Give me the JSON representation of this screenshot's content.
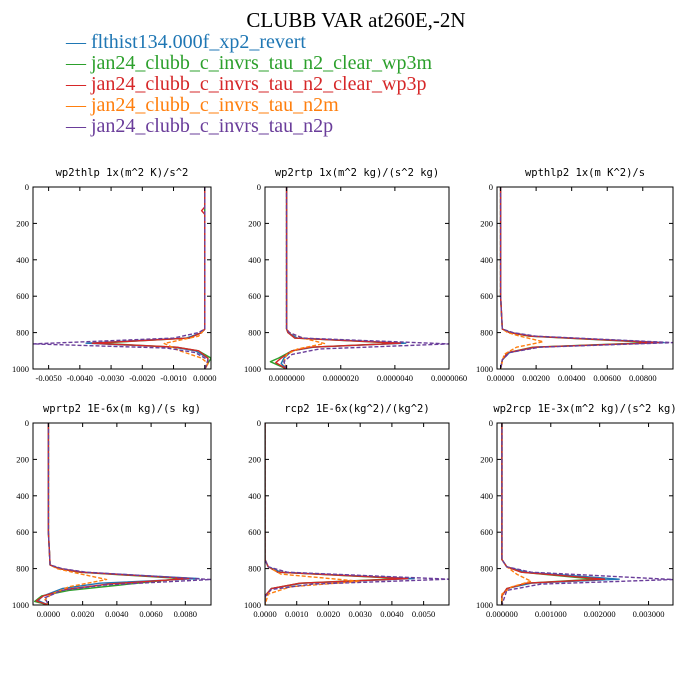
{
  "figure": {
    "title": "CLUBB VAR at260E,-2N"
  },
  "legend": [
    {
      "label": "flthist134.000f_xp2_revert",
      "color": "#1f77b4",
      "dash": "solid"
    },
    {
      "label": "jan24_clubb_c_invrs_tau_n2_clear_wp3m",
      "color": "#2ca02c",
      "dash": "solid"
    },
    {
      "label": "jan24_clubb_c_invrs_tau_n2_clear_wp3p",
      "color": "#d62728",
      "dash": "solid"
    },
    {
      "label": "jan24_clubb_c_invrs_tau_n2m",
      "color": "#ff7f0e",
      "dash": "dashed"
    },
    {
      "label": "jan24_clubb_c_invrs_tau_n2p",
      "color": "#6a3d9a",
      "dash": "dashed"
    }
  ],
  "chart_data": [
    {
      "type": "line",
      "title": "wp2thlp  1x(m^2 K)/s^2",
      "xlim": [
        -0.0055,
        0.0002
      ],
      "xticks": [
        -0.005,
        -0.004,
        -0.003,
        -0.002,
        -0.001,
        0
      ],
      "xtick_labels": [
        "-0.0050",
        "-0.0040",
        "-0.0030",
        "-0.0020",
        "-0.0010",
        "0.0000"
      ],
      "ylim": [
        1000,
        0
      ],
      "yticks": [
        0,
        200,
        400,
        600,
        800,
        1000
      ],
      "series": [
        {
          "color": "#1f77b4",
          "dash": "solid",
          "x": [
            0,
            0,
            0,
            0,
            0,
            -0.0001,
            -0.0006,
            -0.0038,
            -0.001,
            -0.0003,
            0.0001,
            0.0001,
            0
          ],
          "y": [
            0,
            300,
            600,
            700,
            780,
            800,
            830,
            858,
            880,
            900,
            940,
            970,
            1000
          ]
        },
        {
          "color": "#2ca02c",
          "dash": "solid",
          "x": [
            0,
            0,
            0,
            0,
            0,
            -0.0001,
            -0.0005,
            -0.0034,
            -0.0009,
            -0.0002,
            0.0002,
            0.0001,
            0
          ],
          "y": [
            0,
            300,
            600,
            700,
            780,
            800,
            830,
            858,
            880,
            900,
            940,
            970,
            1000
          ]
        },
        {
          "color": "#d62728",
          "dash": "solid",
          "x": [
            0,
            0,
            -0.0001,
            0,
            0,
            0,
            -0.0001,
            -0.0005,
            -0.0036,
            -0.0009,
            -0.0002,
            0.0001,
            0.0001,
            0
          ],
          "y": [
            0,
            110,
            130,
            150,
            600,
            780,
            800,
            830,
            858,
            880,
            900,
            940,
            970,
            1000
          ]
        },
        {
          "color": "#ff7f0e",
          "dash": "dashed",
          "x": [
            0,
            0,
            0,
            0,
            -0.0001,
            -0.0002,
            -0.0013,
            -0.0008,
            -0.0001,
            0.0001,
            0
          ],
          "y": [
            0,
            300,
            600,
            780,
            800,
            820,
            860,
            900,
            940,
            970,
            1000
          ]
        },
        {
          "color": "#6a3d9a",
          "dash": "dashed",
          "x": [
            0,
            0,
            0,
            0,
            0,
            -0.0002,
            -0.001,
            -0.0055,
            -0.0012,
            -0.0003,
            0.0001,
            0
          ],
          "y": [
            0,
            300,
            600,
            700,
            780,
            800,
            830,
            862,
            885,
            910,
            950,
            1000
          ]
        }
      ]
    },
    {
      "type": "line",
      "title": "wp2rtp  1x(m^2 kg)/(s^2 kg)",
      "xlim": [
        -8e-07,
        6e-06
      ],
      "xticks": [
        0,
        2e-06,
        4e-06,
        6e-06
      ],
      "xtick_labels": [
        "0.0000000",
        "0.0000020",
        "0.0000040",
        "0.0000060"
      ],
      "ylim": [
        1000,
        0
      ],
      "yticks": [
        0,
        200,
        400,
        600,
        800,
        1000
      ],
      "series": [
        {
          "color": "#1f77b4",
          "dash": "solid",
          "x": [
            0,
            0,
            0,
            5e-08,
            4e-07,
            4.4e-06,
            1e-06,
            2e-07,
            -1e-07,
            -2e-07,
            0
          ],
          "y": [
            0,
            400,
            780,
            800,
            830,
            858,
            880,
            900,
            940,
            970,
            1000
          ]
        },
        {
          "color": "#2ca02c",
          "dash": "solid",
          "x": [
            0,
            0,
            0,
            5e-08,
            3e-07,
            4.1e-06,
            9e-07,
            2e-07,
            -3e-07,
            -6e-07,
            0
          ],
          "y": [
            0,
            400,
            780,
            800,
            830,
            858,
            880,
            900,
            940,
            960,
            1000
          ]
        },
        {
          "color": "#d62728",
          "dash": "solid",
          "x": [
            0,
            0,
            0,
            5e-08,
            3e-07,
            4.2e-06,
            9e-07,
            2e-07,
            -2e-07,
            -4e-07,
            0
          ],
          "y": [
            0,
            400,
            780,
            800,
            830,
            858,
            880,
            900,
            940,
            965,
            1000
          ]
        },
        {
          "color": "#ff7f0e",
          "dash": "dashed",
          "x": [
            0,
            0,
            0,
            1e-07,
            6e-07,
            1.4e-06,
            4e-07,
            0,
            -1e-07,
            0
          ],
          "y": [
            0,
            400,
            780,
            800,
            830,
            860,
            890,
            920,
            960,
            1000
          ]
        },
        {
          "color": "#6a3d9a",
          "dash": "dashed",
          "x": [
            0,
            0,
            0,
            1e-07,
            6e-07,
            6e-06,
            1.2e-06,
            2e-07,
            -1e-07,
            0
          ],
          "y": [
            0,
            400,
            780,
            800,
            830,
            862,
            890,
            920,
            960,
            1000
          ]
        }
      ]
    },
    {
      "type": "line",
      "title": "wpthlp2  1x(m K^2)/s",
      "xlim": [
        -0.0002,
        0.0097
      ],
      "xticks": [
        0,
        0.002,
        0.004,
        0.006,
        0.008
      ],
      "xtick_labels": [
        "0.00000",
        "0.00200",
        "0.00400",
        "0.00600",
        "0.00800"
      ],
      "ylim": [
        1000,
        0
      ],
      "yticks": [
        0,
        200,
        400,
        600,
        800,
        1000
      ],
      "series": [
        {
          "color": "#1f77b4",
          "dash": "solid",
          "x": [
            0,
            0,
            0.0001,
            0.0006,
            0.0018,
            0.0092,
            0.002,
            0.0005,
            0.0001,
            0
          ],
          "y": [
            0,
            600,
            780,
            800,
            820,
            855,
            880,
            910,
            950,
            1000
          ]
        },
        {
          "color": "#2ca02c",
          "dash": "solid",
          "x": [
            0,
            0,
            0.0001,
            0.0005,
            0.0016,
            0.0086,
            0.0018,
            0.0004,
            0.0001,
            0
          ],
          "y": [
            0,
            600,
            780,
            800,
            820,
            855,
            880,
            910,
            950,
            1000
          ]
        },
        {
          "color": "#d62728",
          "dash": "solid",
          "x": [
            0,
            0,
            0.0001,
            0.0005,
            0.0017,
            0.0089,
            0.0019,
            0.0004,
            0.0001,
            0
          ],
          "y": [
            0,
            600,
            780,
            800,
            820,
            855,
            880,
            910,
            950,
            1000
          ]
        },
        {
          "color": "#ff7f0e",
          "dash": "dashed",
          "x": [
            0,
            0,
            0.0001,
            0.0004,
            0.0011,
            0.0024,
            0.0009,
            0.0002,
            0
          ],
          "y": [
            0,
            600,
            780,
            800,
            820,
            850,
            880,
            920,
            1000
          ]
        },
        {
          "color": "#6a3d9a",
          "dash": "dashed",
          "x": [
            0,
            0,
            0.0001,
            0.0007,
            0.002,
            0.0097,
            0.0022,
            0.0005,
            0.0001,
            0
          ],
          "y": [
            0,
            600,
            780,
            800,
            820,
            855,
            880,
            910,
            950,
            1000
          ]
        }
      ]
    },
    {
      "type": "line",
      "title": "wprtp2  1E-6x(m kg)/(s kg)",
      "xlim": [
        -0.0009,
        0.0095
      ],
      "xticks": [
        0,
        0.002,
        0.004,
        0.006,
        0.008
      ],
      "xtick_labels": [
        "0.0000",
        "0.0020",
        "0.0040",
        "0.0060",
        "0.0080"
      ],
      "ylim": [
        1000,
        0
      ],
      "yticks": [
        0,
        200,
        400,
        600,
        800,
        1000
      ],
      "series": [
        {
          "color": "#1f77b4",
          "dash": "solid",
          "x": [
            0,
            0,
            0.0001,
            0.0007,
            0.002,
            0.0088,
            0.003,
            0.0008,
            -0.0003,
            -0.0006,
            0
          ],
          "y": [
            0,
            600,
            780,
            800,
            820,
            855,
            880,
            910,
            950,
            975,
            1000
          ]
        },
        {
          "color": "#2ca02c",
          "dash": "solid",
          "x": [
            0,
            0,
            0.0001,
            0.0006,
            0.0018,
            0.0078,
            0.0042,
            0.0012,
            -0.0004,
            -0.0008,
            0
          ],
          "y": [
            0,
            600,
            780,
            800,
            820,
            855,
            890,
            920,
            950,
            980,
            1000
          ]
        },
        {
          "color": "#d62728",
          "dash": "solid",
          "x": [
            0,
            0,
            0.0001,
            0.0006,
            0.0019,
            0.0082,
            0.0035,
            0.001,
            -0.0003,
            -0.0007,
            0
          ],
          "y": [
            0,
            600,
            780,
            800,
            820,
            855,
            885,
            915,
            950,
            978,
            1000
          ]
        },
        {
          "color": "#ff7f0e",
          "dash": "dashed",
          "x": [
            0,
            0,
            0.0001,
            0.0005,
            0.0014,
            0.0034,
            0.0012,
            0.0002,
            -0.0002,
            0
          ],
          "y": [
            0,
            600,
            780,
            800,
            820,
            860,
            900,
            940,
            970,
            1000
          ]
        },
        {
          "color": "#6a3d9a",
          "dash": "dashed",
          "x": [
            0,
            0,
            0.0001,
            0.0008,
            0.0022,
            0.0095,
            0.0033,
            0.0008,
            -0.0002,
            0
          ],
          "y": [
            0,
            600,
            780,
            800,
            820,
            860,
            890,
            920,
            960,
            1000
          ]
        }
      ]
    },
    {
      "type": "line",
      "title": "rcp2  1E-6x(kg^2)/(kg^2)",
      "xlim": [
        0,
        0.0058
      ],
      "xticks": [
        0,
        0.001,
        0.002,
        0.003,
        0.004,
        0.005
      ],
      "xtick_labels": [
        "0.0000",
        "0.0010",
        "0.0020",
        "0.0030",
        "0.0040",
        "0.0050"
      ],
      "ylim": [
        1000,
        0
      ],
      "yticks": [
        0,
        200,
        400,
        600,
        800,
        1000
      ],
      "series": [
        {
          "color": "#1f77b4",
          "dash": "solid",
          "x": [
            0,
            0,
            0.0001,
            0.0005,
            0.0047,
            0.0012,
            0.0002,
            0,
            0
          ],
          "y": [
            0,
            750,
            790,
            820,
            855,
            880,
            910,
            950,
            1000
          ]
        },
        {
          "color": "#2ca02c",
          "dash": "solid",
          "x": [
            0,
            0,
            0.0001,
            0.0004,
            0.0043,
            0.0011,
            0.0002,
            0,
            0
          ],
          "y": [
            0,
            750,
            790,
            820,
            855,
            880,
            910,
            950,
            1000
          ]
        },
        {
          "color": "#d62728",
          "dash": "solid",
          "x": [
            0,
            0,
            0.0001,
            0.0004,
            0.0045,
            0.0011,
            0.0002,
            0,
            0
          ],
          "y": [
            0,
            750,
            790,
            820,
            855,
            880,
            910,
            950,
            1000
          ]
        },
        {
          "color": "#ff7f0e",
          "dash": "dashed",
          "x": [
            0,
            0,
            0.0001,
            0.0005,
            0.003,
            0.0008,
            0.0001,
            0
          ],
          "y": [
            0,
            750,
            790,
            830,
            870,
            900,
            940,
            1000
          ]
        },
        {
          "color": "#6a3d9a",
          "dash": "dashed",
          "x": [
            0,
            0,
            0.0001,
            0.0007,
            0.0058,
            0.0015,
            0.0002,
            0,
            0
          ],
          "y": [
            0,
            750,
            790,
            820,
            858,
            885,
            915,
            955,
            1000
          ]
        }
      ]
    },
    {
      "type": "line",
      "title": "wp2rcp  1E-3x(m^2 kg)/(s^2 kg)",
      "xlim": [
        -0.0001,
        0.0035
      ],
      "xticks": [
        0,
        0.001,
        0.002,
        0.003
      ],
      "xtick_labels": [
        "0.000000",
        "0.001000",
        "0.002000",
        "0.003000"
      ],
      "ylim": [
        1000,
        0
      ],
      "yticks": [
        0,
        200,
        400,
        600,
        800,
        1000
      ],
      "series": [
        {
          "color": "#1f77b4",
          "dash": "solid",
          "x": [
            0,
            0,
            0.0001,
            0.0005,
            0.0024,
            0.0006,
            0.0001,
            0,
            0
          ],
          "y": [
            0,
            750,
            790,
            820,
            858,
            880,
            910,
            950,
            1000
          ]
        },
        {
          "color": "#2ca02c",
          "dash": "solid",
          "x": [
            0,
            0,
            0.0001,
            0.0004,
            0.0019,
            0.0005,
            0.0001,
            0,
            0
          ],
          "y": [
            0,
            750,
            790,
            820,
            858,
            880,
            910,
            950,
            1000
          ]
        },
        {
          "color": "#d62728",
          "dash": "solid",
          "x": [
            0,
            0,
            0.0001,
            0.0004,
            0.0021,
            0.0005,
            0.0001,
            0,
            0
          ],
          "y": [
            0,
            750,
            790,
            820,
            858,
            880,
            910,
            950,
            1000
          ]
        },
        {
          "color": "#ff7f0e",
          "dash": "dashed",
          "x": [
            0,
            0,
            0.0001,
            0.0003,
            0.0006,
            0.0002,
            0,
            0
          ],
          "y": [
            0,
            750,
            790,
            830,
            870,
            900,
            940,
            1000
          ]
        },
        {
          "color": "#6a3d9a",
          "dash": "dashed",
          "x": [
            0,
            0,
            0.0001,
            0.0006,
            0.0035,
            0.0008,
            0.0001,
            0
          ],
          "y": [
            0,
            750,
            790,
            820,
            860,
            885,
            920,
            1000
          ]
        }
      ]
    }
  ]
}
